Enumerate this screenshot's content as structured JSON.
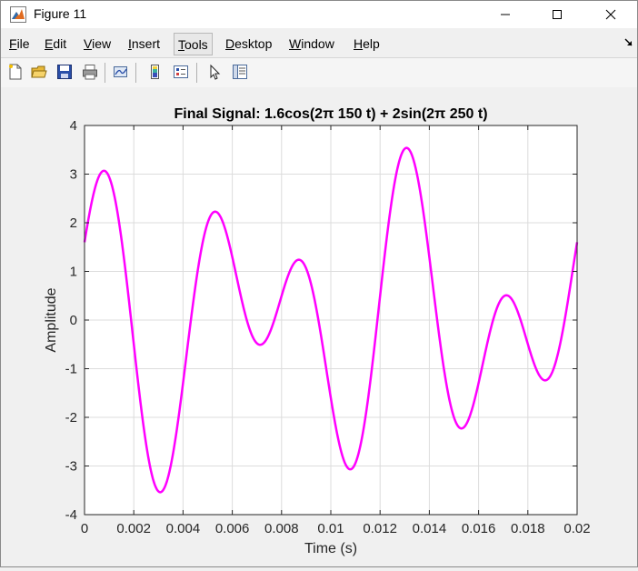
{
  "window": {
    "title": "Figure 11",
    "controls": {
      "minimize": "—",
      "maximize": "☐",
      "close": "✕"
    }
  },
  "menu": {
    "items": [
      {
        "label": "File",
        "underline": "F"
      },
      {
        "label": "Edit",
        "underline": "E"
      },
      {
        "label": "View",
        "underline": "V"
      },
      {
        "label": "Insert",
        "underline": "I"
      },
      {
        "label": "Tools",
        "underline": "T"
      },
      {
        "label": "Desktop",
        "underline": "D"
      },
      {
        "label": "Window",
        "underline": "W"
      },
      {
        "label": "Help",
        "underline": "H"
      }
    ],
    "active_item": "Tools"
  },
  "toolbar": {
    "buttons": [
      {
        "name": "new-figure-icon"
      },
      {
        "name": "open-file-icon"
      },
      {
        "name": "save-icon"
      },
      {
        "name": "print-icon"
      },
      {
        "name": "link-axes-icon"
      },
      {
        "name": "colorbar-icon"
      },
      {
        "name": "legend-icon"
      },
      {
        "name": "edit-plot-arrow-icon"
      },
      {
        "name": "property-inspector-icon"
      }
    ]
  },
  "chart_data": {
    "type": "line",
    "title": "Final Signal: 1.6cos(2π 150 t) + 2sin(2π 250 t)",
    "xlabel": "Time (s)",
    "ylabel": "Amplitude",
    "xlim": [
      0,
      0.02
    ],
    "ylim": [
      -4,
      4
    ],
    "xticks": [
      0,
      0.002,
      0.004,
      0.006,
      0.008,
      0.01,
      0.012,
      0.014,
      0.016,
      0.018,
      0.02
    ],
    "xtick_labels": [
      "0",
      "0.002",
      "0.004",
      "0.006",
      "0.008",
      "0.01",
      "0.012",
      "0.014",
      "0.016",
      "0.018",
      "0.02"
    ],
    "yticks": [
      -4,
      -3,
      -2,
      -1,
      0,
      1,
      2,
      3,
      4
    ],
    "ytick_labels": [
      "-4",
      "-3",
      "-2",
      "-1",
      "0",
      "1",
      "2",
      "3",
      "4"
    ],
    "grid": true,
    "series": [
      {
        "color": "#ff00ff",
        "function": {
          "terms": [
            {
              "amplitude": 1.6,
              "kind": "cos",
              "frequency_hz": 150
            },
            {
              "amplitude": 2.0,
              "kind": "sin",
              "frequency_hz": 250
            }
          ]
        },
        "x": [
          0,
          0.0008,
          0.0031,
          0.0053,
          0.0071,
          0.0087,
          0.0108,
          0.0131,
          0.0153,
          0.0171,
          0.0188,
          0.02
        ],
        "y": [
          1.6,
          3.07,
          -3.55,
          2.22,
          -0.5,
          1.24,
          -3.07,
          3.55,
          -2.22,
          0.5,
          -1.24,
          1.6
        ]
      }
    ]
  },
  "colors": {
    "line": "#ff00ff",
    "grid": "#dcdcdc",
    "axes_bg": "#ffffff",
    "figure_bg": "#f0f0f0"
  }
}
